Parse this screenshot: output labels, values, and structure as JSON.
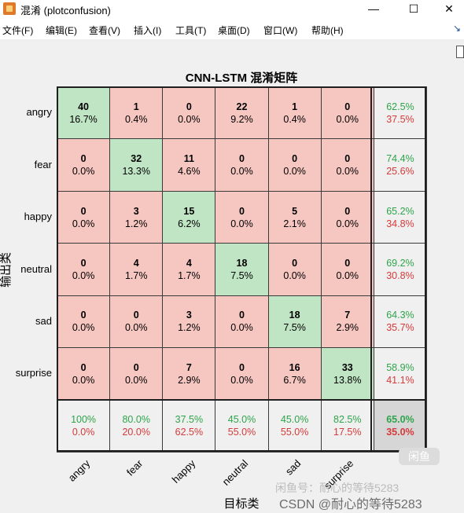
{
  "window": {
    "title": "混淆 (plotconfusion)",
    "controls": {
      "minimize": "—",
      "maximize": "☐",
      "close": "✕"
    }
  },
  "menu": [
    "文件(F)",
    "编辑(E)",
    "查看(V)",
    "插入(I)",
    "工具(T)",
    "桌面(D)",
    "窗口(W)",
    "帮助(H)"
  ],
  "menu_arrow": "↘",
  "chart_data": {
    "type": "heatmap",
    "title": "CNN-LSTM 混淆矩阵",
    "ylabel": "输出类",
    "xlabel": "目标类",
    "classes": [
      "angry",
      "fear",
      "happy",
      "neutral",
      "sad",
      "surprise"
    ],
    "counts": [
      [
        40,
        1,
        0,
        22,
        1,
        0
      ],
      [
        0,
        32,
        11,
        0,
        0,
        0
      ],
      [
        0,
        3,
        15,
        0,
        5,
        0
      ],
      [
        0,
        4,
        4,
        18,
        0,
        0
      ],
      [
        0,
        0,
        3,
        0,
        18,
        7
      ],
      [
        0,
        0,
        7,
        0,
        16,
        33
      ]
    ],
    "percents": [
      [
        "16.7%",
        "0.4%",
        "0.0%",
        "9.2%",
        "0.4%",
        "0.0%"
      ],
      [
        "0.0%",
        "13.3%",
        "4.6%",
        "0.0%",
        "0.0%",
        "0.0%"
      ],
      [
        "0.0%",
        "1.2%",
        "6.2%",
        "0.0%",
        "2.1%",
        "0.0%"
      ],
      [
        "0.0%",
        "1.7%",
        "1.7%",
        "7.5%",
        "0.0%",
        "0.0%"
      ],
      [
        "0.0%",
        "0.0%",
        "1.2%",
        "0.0%",
        "7.5%",
        "2.9%"
      ],
      [
        "0.0%",
        "0.0%",
        "2.9%",
        "0.0%",
        "6.7%",
        "13.8%"
      ]
    ],
    "row_summary": [
      [
        "62.5%",
        "37.5%"
      ],
      [
        "74.4%",
        "25.6%"
      ],
      [
        "65.2%",
        "34.8%"
      ],
      [
        "69.2%",
        "30.8%"
      ],
      [
        "64.3%",
        "35.7%"
      ],
      [
        "58.9%",
        "41.1%"
      ]
    ],
    "col_summary": [
      [
        "100%",
        "0.0%"
      ],
      [
        "80.0%",
        "20.0%"
      ],
      [
        "37.5%",
        "62.5%"
      ],
      [
        "45.0%",
        "55.0%"
      ],
      [
        "45.0%",
        "55.0%"
      ],
      [
        "82.5%",
        "17.5%"
      ]
    ],
    "overall": [
      "65.0%",
      "35.0%"
    ],
    "colors": {
      "diagonal": "#bfe5c4",
      "off_diagonal": "#f6c6c1",
      "summary": "#f0f0f0",
      "overall": "#d6d6d6",
      "correct_text": "#2ea44a",
      "error_text": "#d63a3a"
    }
  },
  "watermark": {
    "logo": "闲鱼",
    "faint": "闲鱼号：耐心的等待5283",
    "csdn": "CSDN @耐心的等待5283"
  }
}
